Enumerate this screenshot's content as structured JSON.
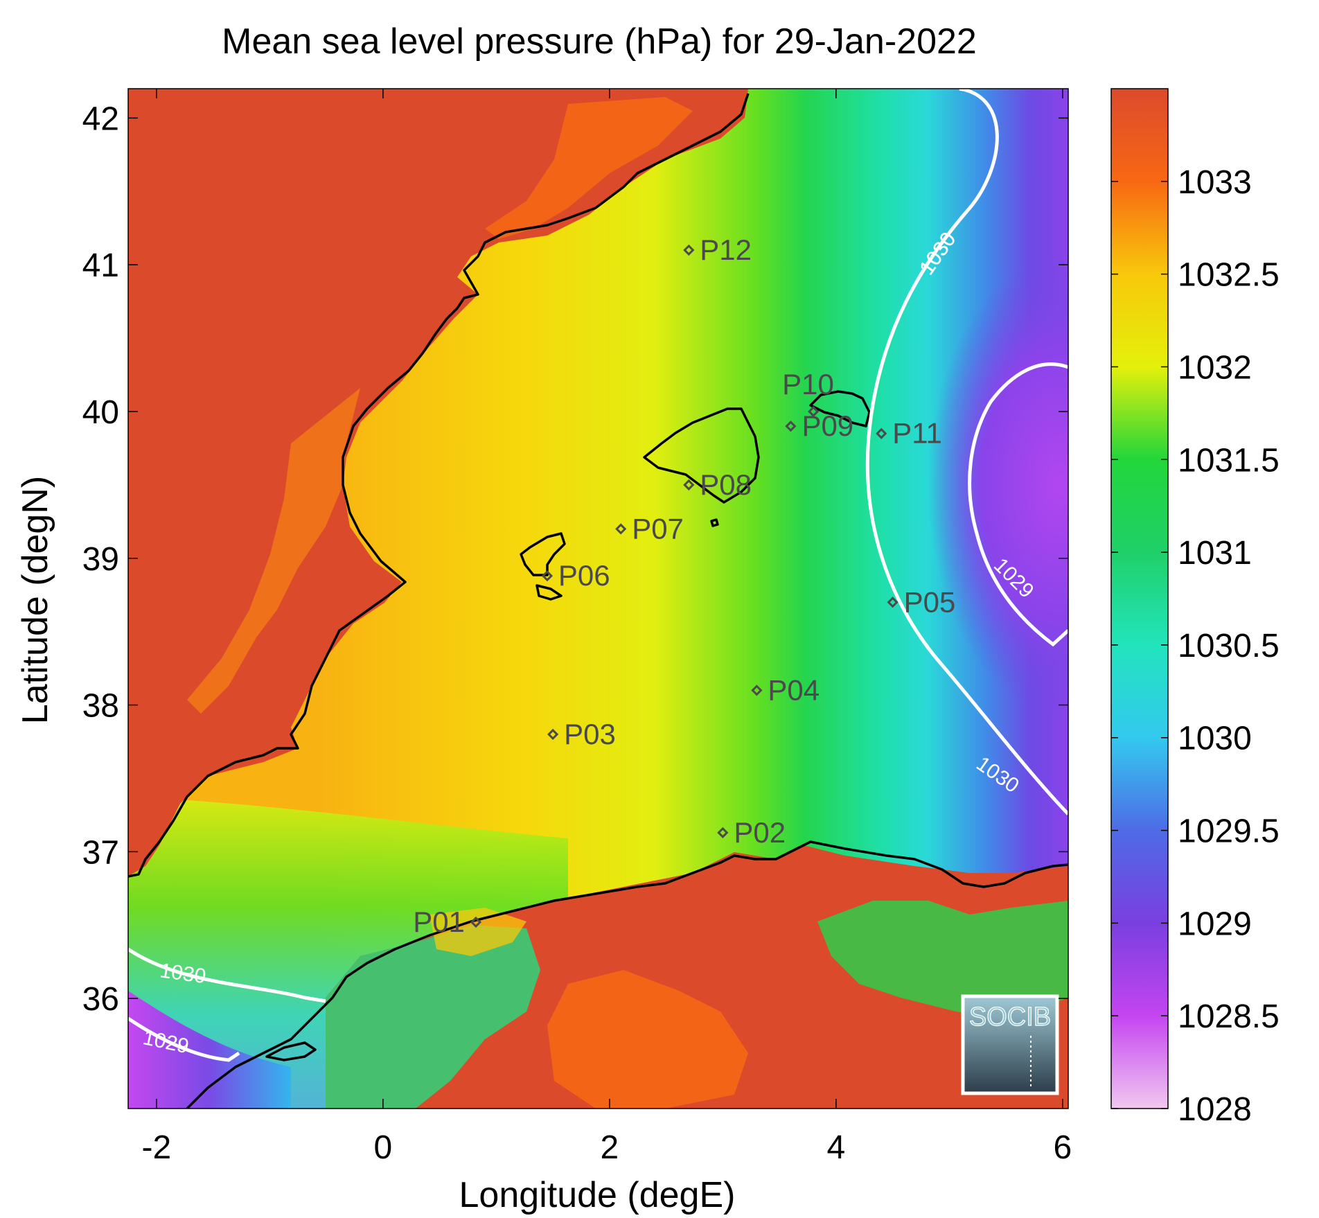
{
  "title": "Mean sea level pressure (hPa) for 29-Jan-2022",
  "axes": {
    "x_label": "Longitude (degE)",
    "y_label": "Latitude (degN)",
    "x_ticks": [
      "-2",
      "0",
      "2",
      "4",
      "6"
    ],
    "y_ticks": [
      "42",
      "41",
      "40",
      "39",
      "38",
      "37",
      "36"
    ],
    "x_range": [
      -2.25,
      6.05
    ],
    "y_range": [
      35.25,
      42.2
    ]
  },
  "colorbar": {
    "ticks": [
      "1033",
      "1032.5",
      "1032",
      "1031.5",
      "1031",
      "1030.5",
      "1030",
      "1029.5",
      "1029",
      "1028.5",
      "1028"
    ],
    "range": [
      1028,
      1033.5
    ],
    "stops": [
      {
        "value": 1028.0,
        "color": "#f2c8f0"
      },
      {
        "value": 1028.5,
        "color": "#c445f0"
      },
      {
        "value": 1029.0,
        "color": "#7a3fe0"
      },
      {
        "value": 1029.5,
        "color": "#4e6be6"
      },
      {
        "value": 1030.0,
        "color": "#33c9ef"
      },
      {
        "value": 1030.5,
        "color": "#22e4bc"
      },
      {
        "value": 1031.0,
        "color": "#1fd069"
      },
      {
        "value": 1031.5,
        "color": "#22d63a"
      },
      {
        "value": 1032.0,
        "color": "#e4f00b"
      },
      {
        "value": 1032.5,
        "color": "#f8c80b"
      },
      {
        "value": 1033.0,
        "color": "#f86813"
      },
      {
        "value": 1033.5,
        "color": "#dc4a2c"
      }
    ]
  },
  "contours": [
    {
      "label": "1030"
    },
    {
      "label": "1029"
    },
    {
      "label": "1030"
    },
    {
      "label": "1029"
    },
    {
      "label": "1030"
    }
  ],
  "stations": [
    {
      "name": "P01",
      "lon": 0.82,
      "lat": 36.52
    },
    {
      "name": "P02",
      "lon": 3.0,
      "lat": 37.13
    },
    {
      "name": "P03",
      "lon": 1.5,
      "lat": 37.8
    },
    {
      "name": "P04",
      "lon": 3.3,
      "lat": 38.1
    },
    {
      "name": "P05",
      "lon": 4.5,
      "lat": 38.7
    },
    {
      "name": "P06",
      "lon": 1.45,
      "lat": 38.88
    },
    {
      "name": "P07",
      "lon": 2.1,
      "lat": 39.2
    },
    {
      "name": "P08",
      "lon": 2.7,
      "lat": 39.5
    },
    {
      "name": "P09",
      "lon": 3.6,
      "lat": 39.9
    },
    {
      "name": "P10",
      "lon": 3.8,
      "lat": 40.0
    },
    {
      "name": "P11",
      "lon": 4.4,
      "lat": 39.85
    },
    {
      "name": "P12",
      "lon": 2.7,
      "lat": 41.1
    }
  ],
  "logo": {
    "text": "SOCIB"
  },
  "colors": {
    "land_spain": "#dc4a2c",
    "coastline": "#000000",
    "contour": "#ffffff",
    "station": "#4a4a4a"
  }
}
